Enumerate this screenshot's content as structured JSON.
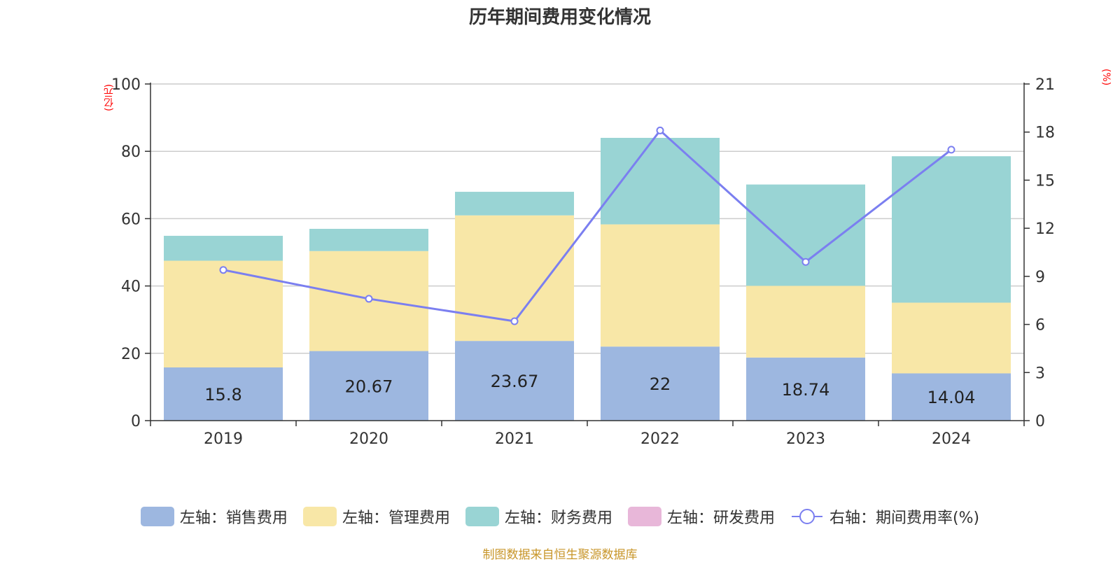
{
  "chart_data": {
    "type": "bar",
    "title": "历年期间费用变化情况",
    "categories": [
      "2019",
      "2020",
      "2021",
      "2022",
      "2023",
      "2024"
    ],
    "series": [
      {
        "name": "左轴：销售费用",
        "axis": "left",
        "kind": "bar",
        "color": "#9db7e0",
        "values": [
          15.8,
          20.67,
          23.67,
          22,
          18.74,
          14.04
        ]
      },
      {
        "name": "左轴：管理费用",
        "axis": "left",
        "kind": "bar",
        "color": "#f8e7a7",
        "values": [
          31.7,
          29.7,
          37.3,
          36.3,
          21.3,
          21.0
        ]
      },
      {
        "name": "左轴：财务费用",
        "axis": "left",
        "kind": "bar",
        "color": "#99d4d4",
        "values": [
          7.4,
          6.6,
          7.0,
          25.7,
          30.1,
          43.5
        ]
      },
      {
        "name": "左轴：研发费用",
        "axis": "left",
        "kind": "bar",
        "color": "#e8b7d9",
        "values": [
          0,
          0,
          0,
          0,
          0,
          0
        ]
      },
      {
        "name": "右轴：期间费用率(%)",
        "axis": "right",
        "kind": "line",
        "color": "#7b7ff0",
        "values": [
          9.4,
          7.6,
          6.2,
          18.1,
          9.9,
          16.9
        ]
      }
    ],
    "left_axis": {
      "unit": "(亿元)",
      "ylim": [
        0,
        100
      ],
      "ticks": [
        0,
        20,
        40,
        60,
        80,
        100
      ]
    },
    "right_axis": {
      "unit": "(%)",
      "ylim": [
        0,
        21
      ],
      "ticks": [
        0,
        3,
        6,
        9,
        12,
        15,
        18,
        21
      ]
    },
    "grid": true,
    "legend_position": "bottom",
    "data_labels_series": "左轴：销售费用",
    "source": "制图数据来自恒生聚源数据库"
  }
}
